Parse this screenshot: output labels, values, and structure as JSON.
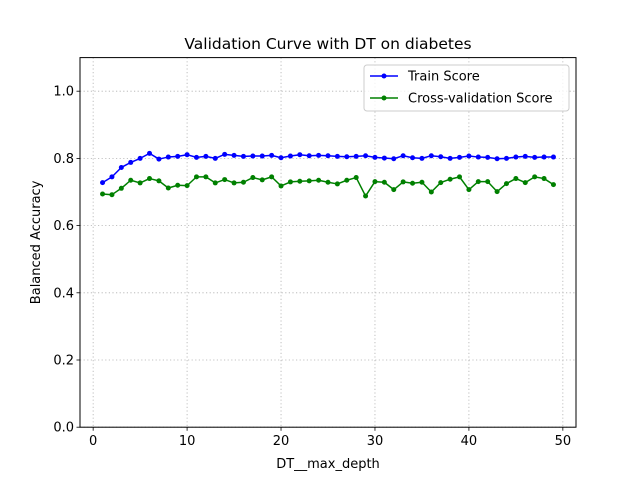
{
  "chart_data": {
    "type": "line",
    "title": "Validation Curve with DT on diabetes",
    "xlabel": "DT__max_depth",
    "ylabel": "Balanced Accuracy",
    "xlim": [
      -1.4,
      51.4
    ],
    "ylim": [
      0.0,
      1.1
    ],
    "xticks": [
      0,
      10,
      20,
      30,
      40,
      50
    ],
    "xtick_labels": [
      "0",
      "10",
      "20",
      "30",
      "40",
      "50"
    ],
    "yticks": [
      0.0,
      0.2,
      0.4,
      0.6,
      0.8,
      1.0
    ],
    "ytick_labels": [
      "0.0",
      "0.2",
      "0.4",
      "0.6",
      "0.8",
      "1.0"
    ],
    "grid": true,
    "legend_position": "top-right",
    "x": [
      1,
      2,
      3,
      4,
      5,
      6,
      7,
      8,
      9,
      10,
      11,
      12,
      13,
      14,
      15,
      16,
      17,
      18,
      19,
      20,
      21,
      22,
      23,
      24,
      25,
      26,
      27,
      28,
      29,
      30,
      31,
      32,
      33,
      34,
      35,
      36,
      37,
      38,
      39,
      40,
      41,
      42,
      43,
      44,
      45,
      46,
      47,
      48,
      49
    ],
    "series": [
      {
        "name": "Train Score",
        "color": "#0000ff",
        "values": [
          0.728,
          0.745,
          0.773,
          0.788,
          0.8,
          0.815,
          0.798,
          0.804,
          0.806,
          0.811,
          0.803,
          0.806,
          0.8,
          0.812,
          0.809,
          0.806,
          0.807,
          0.807,
          0.809,
          0.802,
          0.807,
          0.811,
          0.808,
          0.809,
          0.808,
          0.806,
          0.805,
          0.806,
          0.808,
          0.803,
          0.801,
          0.799,
          0.808,
          0.802,
          0.8,
          0.808,
          0.805,
          0.8,
          0.803,
          0.807,
          0.804,
          0.803,
          0.799,
          0.8,
          0.804,
          0.806,
          0.803,
          0.804,
          0.804
        ]
      },
      {
        "name": "Cross-validation Score",
        "color": "#008000",
        "values": [
          0.694,
          0.692,
          0.711,
          0.735,
          0.727,
          0.74,
          0.733,
          0.712,
          0.72,
          0.719,
          0.745,
          0.745,
          0.727,
          0.737,
          0.727,
          0.729,
          0.743,
          0.736,
          0.745,
          0.718,
          0.73,
          0.732,
          0.733,
          0.735,
          0.729,
          0.724,
          0.735,
          0.743,
          0.688,
          0.731,
          0.729,
          0.707,
          0.73,
          0.726,
          0.729,
          0.7,
          0.728,
          0.738,
          0.745,
          0.707,
          0.731,
          0.731,
          0.701,
          0.725,
          0.74,
          0.728,
          0.745,
          0.74,
          0.722
        ]
      }
    ]
  }
}
